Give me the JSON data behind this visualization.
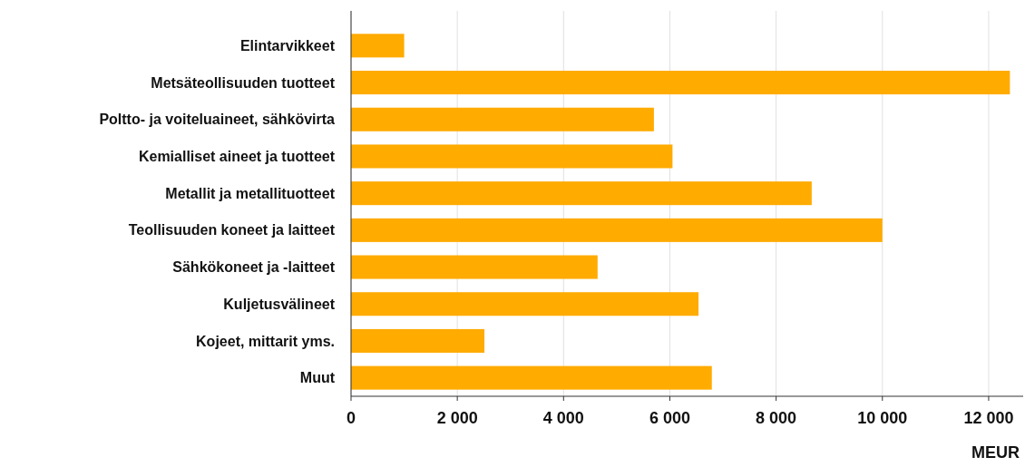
{
  "chart_data": {
    "type": "bar",
    "orientation": "horizontal",
    "xlabel": "MEUR",
    "categories": [
      "Elintarvikkeet",
      "Metsäteollisuuden tuotteet",
      "Poltto- ja voiteluaineet, sähkövirta",
      "Kemialliset aineet ja tuotteet",
      "Metallit ja metallituotteet",
      "Teollisuuden koneet ja laitteet",
      "Sähkökoneet ja -laitteet",
      "Kuljetusvälineet",
      "Kojeet, mittarit yms.",
      "Muut"
    ],
    "values": [
      1000,
      12400,
      5700,
      6050,
      8670,
      10000,
      4640,
      6540,
      2510,
      6790
    ],
    "color": "#ffab00",
    "xlim": [
      0,
      12650
    ],
    "xticks": [
      0,
      {
        "value": 2000,
        "label": "2 000"
      },
      {
        "value": 4000,
        "label": "4 000"
      },
      {
        "value": 6000,
        "label": "6 000"
      },
      {
        "value": 8000,
        "label": "8 000"
      },
      {
        "value": 10000,
        "label": "10 000"
      },
      {
        "value": 12000,
        "label": "12 000"
      }
    ],
    "grid": "x"
  }
}
